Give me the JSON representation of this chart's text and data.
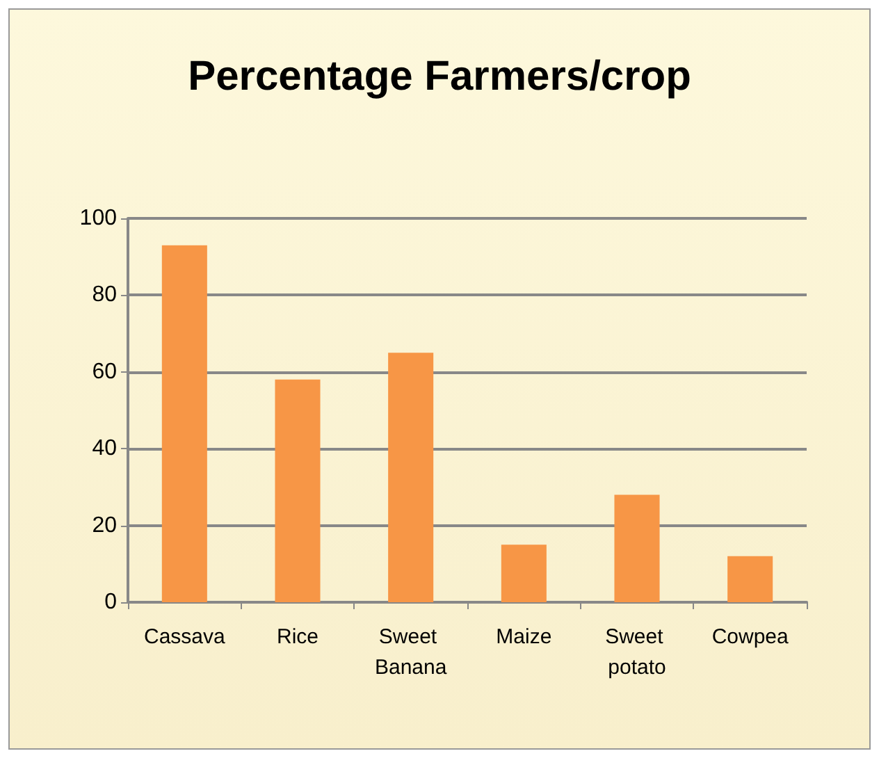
{
  "chart_data": {
    "type": "bar",
    "title": "Percentage Farmers/crop",
    "categories": [
      "Cassava",
      "Rice",
      "Sweet Banana",
      "Maize",
      "Sweet potato",
      "Cowpea"
    ],
    "values": [
      93,
      58,
      65,
      15,
      28,
      12
    ],
    "color": "#f79646",
    "ylim": [
      0,
      100
    ],
    "yticks": [
      0,
      20,
      40,
      60,
      80,
      100
    ],
    "grid": "y"
  }
}
